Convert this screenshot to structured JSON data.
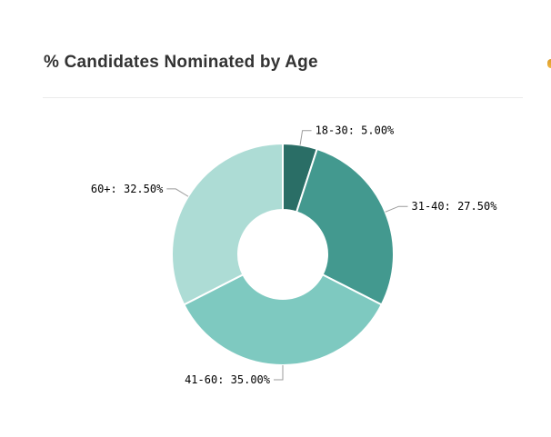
{
  "page": {
    "background": "#ffffff"
  },
  "header": {
    "title": "% Candidates Nominated by Age",
    "title_color": "#333333"
  },
  "edge_widget": {
    "color_top": "#d99c2b",
    "color_bottom": "#f2b63f"
  },
  "chart_data": {
    "type": "pie",
    "subtype": "donut",
    "title": "% Candidates Nominated by Age",
    "categories": [
      "18-30",
      "31-40",
      "41-60",
      "60+"
    ],
    "values": [
      5.0,
      27.5,
      35.0,
      32.5
    ],
    "unit": "%",
    "slice_labels": [
      "18-30: 5.00%",
      "31-40: 27.50%",
      "41-60: 35.00%",
      "60+: 32.50%"
    ],
    "colors": [
      "#2a6e66",
      "#43998f",
      "#7ec9c0",
      "#addcd5"
    ],
    "start_angle_deg": 0,
    "direction": "clockwise",
    "inner_radius_ratio": 0.4,
    "stroke_color": "#ffffff",
    "label_color": "#000000",
    "leader_line_color": "#9b9b9b",
    "legend": "none",
    "grid": false
  }
}
